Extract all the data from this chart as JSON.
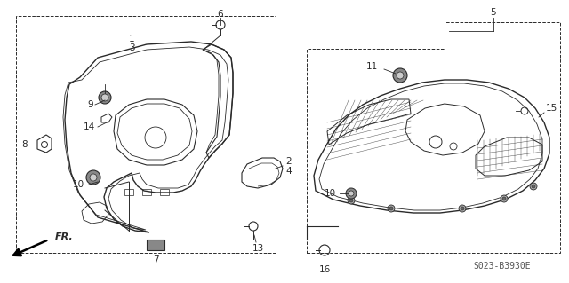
{
  "background_color": "#ffffff",
  "line_color": "#2a2a2a",
  "code": "S023-B3930E",
  "fig_width": 6.4,
  "fig_height": 3.19,
  "dpi": 100
}
